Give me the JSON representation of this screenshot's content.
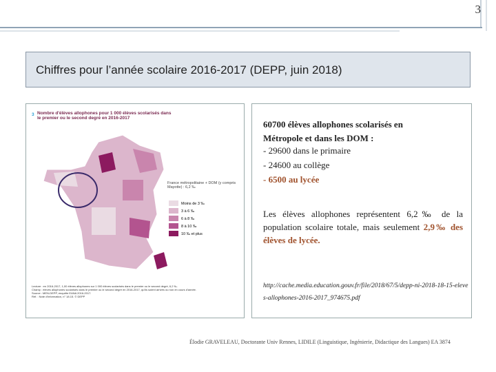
{
  "header": {
    "page_number": "3",
    "title": "Chiffres pour l’année scolaire 2016-2017 (DEPP, juin 2018)"
  },
  "figure": {
    "caption_number": "3",
    "caption": "Nombre d'élèves allophones pour 1 000 élèves scolarisés dans le premier ou le second degré en 2016-2017",
    "legend_title": "France métropolitaine + DOM (y compris Mayotte) : 6,2 ‰",
    "legend_items": [
      "Moins de 3 ‰",
      "3 à 6 ‰",
      "6 à 8 ‰",
      "8 à 10 ‰",
      "10 ‰ et plus"
    ],
    "notes": [
      "Lecture : en 2016-2017, 1,00 élèves allophones sur 1 000 élèves scolarisés dans le premier ou le second degré, 6,2 ‰.",
      "Champ : élèves allophones scolarisés dans le premier ou le second degré en 2016-2017, qu'ils soient arrivés ou non en cours d'année.",
      "Source : MEN-DEPP, enquête EANA 2016-2017."
    ],
    "reference": "Réf. : Note d'information, n° 18.15. © DEPP"
  },
  "text": {
    "heading": "60700 élèves allophones scolarisés en Métropole et dans les DOM :",
    "items": [
      "- 29600 dans le primaire",
      "- 24600 au collège"
    ],
    "highlight_item": "- 6500 au lycée",
    "paragraph": "Les élèves allophones représentent 6,2‰ de la population scolaire totale, mais seulement",
    "paragraph_highlight": "2,9‰ des élèves de lycée.",
    "link": "http://cache.media.education.gouv.fr/file/2018/67/5/depp-ni-2018-18-15-eleves-allophones-2016-2017_974675.pdf"
  },
  "footer": "Élodie GRAVELEAU, Doctorante Univ Rennes, LIDILE (Linguistique, Ingénierie, Didactique des Langues) EA 3874"
}
